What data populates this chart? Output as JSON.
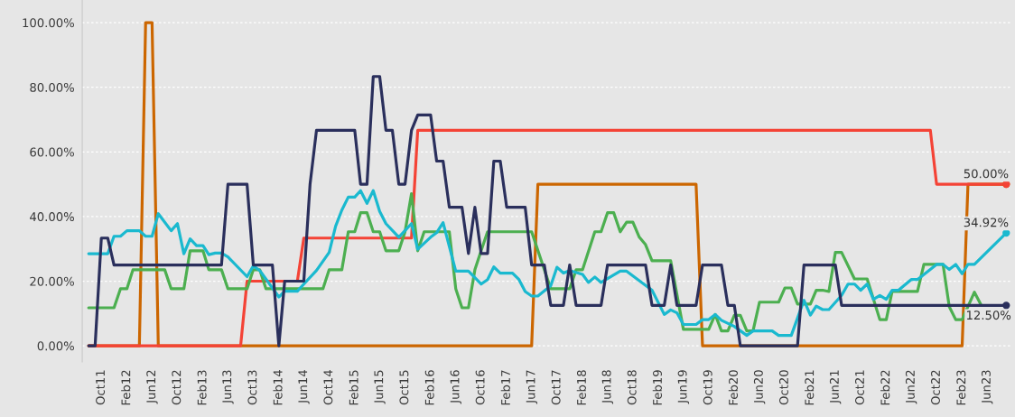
{
  "chart_data": {
    "type": "line",
    "series": [
      {
        "color": "#cc6600",
        "x": [
          "2011-08",
          "2012-04",
          "2012-05",
          "2012-06",
          "2012-07",
          "2017-06",
          "2017-07",
          "2019-08",
          "2019-09",
          "2023-02",
          "2023-03",
          "2023-09"
        ],
        "values": [
          0,
          0,
          100,
          100,
          0,
          0,
          50,
          50,
          0,
          0,
          50,
          50
        ]
      },
      {
        "color": "#f44336",
        "x": [
          "2011-08",
          "2013-08",
          "2013-09",
          "2014-05",
          "2014-06",
          "2015-11",
          "2015-12",
          "2022-09",
          "2022-10",
          "2023-09"
        ],
        "values": [
          0,
          0,
          20,
          20,
          33.33,
          33.33,
          66.67,
          66.67,
          50,
          50
        ]
      },
      {
        "color": "#4caf50",
        "x": [
          "2011-08",
          "2011-12",
          "2012-01",
          "2012-02",
          "2012-03",
          "2012-08",
          "2012-09",
          "2012-11",
          "2012-12",
          "2013-02",
          "2013-03",
          "2013-05",
          "2013-06",
          "2013-09",
          "2013-10",
          "2013-11",
          "2013-12",
          "2014-09",
          "2014-10",
          "2014-12",
          "2015-01",
          "2015-02",
          "2015-03",
          "2015-04",
          "2015-05",
          "2015-06",
          "2015-07",
          "2015-09",
          "2015-10",
          "2015-11",
          "2015-12",
          "2016-01",
          "2016-05",
          "2016-06",
          "2016-07",
          "2016-08",
          "2016-09",
          "2016-10",
          "2016-11",
          "2017-06",
          "2017-08",
          "2017-09",
          "2017-12",
          "2018-01",
          "2018-02",
          "2018-04",
          "2018-05",
          "2018-06",
          "2018-07",
          "2018-08",
          "2018-09",
          "2018-10",
          "2018-11",
          "2018-12",
          "2019-01",
          "2019-04",
          "2019-06",
          "2019-10",
          "2019-11",
          "2019-12",
          "2020-01",
          "2020-02",
          "2020-03",
          "2020-04",
          "2020-05",
          "2020-06",
          "2020-09",
          "2020-10",
          "2020-11",
          "2020-12",
          "2021-02",
          "2021-03",
          "2021-04",
          "2021-05",
          "2021-06",
          "2021-07",
          "2021-09",
          "2021-11",
          "2022-01",
          "2022-02",
          "2022-03",
          "2022-07",
          "2022-08",
          "2022-11",
          "2022-12",
          "2023-01",
          "2023-02",
          "2023-04",
          "2023-05"
        ],
        "values": [
          11.76,
          11.76,
          17.65,
          17.65,
          23.53,
          23.53,
          17.65,
          17.65,
          29.41,
          29.41,
          23.53,
          23.53,
          17.65,
          17.65,
          23.53,
          23.53,
          17.65,
          17.65,
          23.53,
          23.53,
          35.29,
          35.29,
          41.18,
          41.18,
          35.29,
          35.29,
          29.41,
          29.41,
          35.29,
          47.06,
          29.41,
          35.29,
          35.29,
          17.65,
          11.76,
          11.76,
          23.53,
          29.41,
          35.29,
          35.29,
          23.53,
          17.65,
          17.65,
          23.53,
          23.53,
          35.29,
          35.29,
          41.18,
          41.18,
          35.29,
          38.24,
          38.24,
          33.6,
          31.3,
          26.3,
          26.3,
          5.1,
          5.1,
          9.7,
          4.6,
          4.6,
          9.4,
          9.4,
          4.6,
          4.6,
          13.5,
          13.5,
          17.9,
          17.9,
          12.9,
          12.9,
          17.2,
          17.2,
          16.8,
          28.9,
          28.9,
          20.7,
          20.7,
          8.1,
          8.1,
          16.8,
          16.8,
          25.2,
          25.2,
          12.1,
          8.1,
          8.1,
          16.6,
          12.9
        ]
      },
      {
        "color": "#1ab9cf",
        "x": [
          "2011-08",
          "2011-11",
          "2011-12",
          "2012-01",
          "2012-02",
          "2012-04",
          "2012-05",
          "2012-06",
          "2012-07",
          "2012-09",
          "2012-10",
          "2012-11",
          "2012-12",
          "2013-01",
          "2013-02",
          "2013-03",
          "2013-04",
          "2013-05",
          "2013-06",
          "2013-09",
          "2013-10",
          "2013-11",
          "2014-02",
          "2014-03",
          "2014-05",
          "2014-06",
          "2014-08",
          "2014-10",
          "2014-11",
          "2014-12",
          "2015-01",
          "2015-02",
          "2015-03",
          "2015-04",
          "2015-05",
          "2015-06",
          "2015-07",
          "2015-09",
          "2015-11",
          "2015-12",
          "2016-02",
          "2016-03",
          "2016-04",
          "2016-06",
          "2016-08",
          "2016-10",
          "2016-11",
          "2016-12",
          "2017-01",
          "2017-03",
          "2017-04",
          "2017-05",
          "2017-06",
          "2017-07",
          "2017-09",
          "2017-10",
          "2017-11",
          "2017-12",
          "2018-02",
          "2018-03",
          "2018-04",
          "2018-05",
          "2018-08",
          "2018-09",
          "2019-01",
          "2019-03",
          "2019-04",
          "2019-05",
          "2019-06",
          "2019-08",
          "2019-09",
          "2019-10",
          "2019-11",
          "2019-12",
          "2020-02",
          "2020-04",
          "2020-05",
          "2020-08",
          "2020-09",
          "2020-11",
          "2021-01",
          "2021-02",
          "2021-03",
          "2021-04",
          "2021-05",
          "2021-07",
          "2021-08",
          "2021-09",
          "2021-10",
          "2021-11",
          "2021-12",
          "2022-01",
          "2022-02",
          "2022-03",
          "2022-04",
          "2022-06",
          "2022-07",
          "2022-10",
          "2022-11",
          "2022-12",
          "2023-01",
          "2023-02",
          "2023-03",
          "2023-04",
          "2023-09"
        ],
        "values": [
          28.5,
          28.5,
          33.9,
          33.9,
          35.6,
          35.6,
          33.9,
          33.9,
          40.9,
          35.6,
          37.8,
          28.5,
          33.1,
          31,
          31,
          28.2,
          28.7,
          28.7,
          27.5,
          21.4,
          24.7,
          23.3,
          15.1,
          16.9,
          16.9,
          19.1,
          23.3,
          28.9,
          37,
          42,
          46,
          46,
          48,
          44.1,
          48,
          41.6,
          37.8,
          33.6,
          37.8,
          29.9,
          33.6,
          35,
          38.1,
          23.1,
          23.1,
          19.1,
          20.5,
          24.4,
          22.5,
          22.5,
          20.5,
          16.8,
          15.4,
          15.4,
          18.6,
          24.3,
          22.5,
          23.3,
          22.1,
          19.6,
          21.3,
          19.6,
          23.1,
          23.1,
          17.2,
          9.7,
          11.1,
          10.2,
          6.6,
          6.6,
          8.1,
          8.1,
          9.7,
          7.9,
          6,
          3.2,
          4.6,
          4.6,
          3.2,
          3.2,
          14.1,
          9.5,
          12.3,
          11.2,
          11.2,
          15.6,
          19.1,
          19.1,
          17.2,
          19.1,
          14.4,
          15.6,
          14.4,
          17.2,
          17.2,
          20.5,
          20.5,
          25.2,
          25.2,
          23.6,
          25.2,
          22.3,
          25.2,
          25.2,
          34.92
        ]
      },
      {
        "color": "#2a2f5c",
        "x": [
          "2011-08",
          "2011-09",
          "2011-10",
          "2011-11",
          "2011-12",
          "2013-05",
          "2013-06",
          "2013-09",
          "2013-10",
          "2014-01",
          "2014-02",
          "2014-03",
          "2014-06",
          "2014-07",
          "2014-08",
          "2015-02",
          "2015-03",
          "2015-04",
          "2015-05",
          "2015-06",
          "2015-07",
          "2015-08",
          "2015-09",
          "2015-10",
          "2015-11",
          "2015-12",
          "2016-02",
          "2016-03",
          "2016-04",
          "2016-05",
          "2016-07",
          "2016-08",
          "2016-09",
          "2016-10",
          "2016-11",
          "2016-12",
          "2017-01",
          "2017-02",
          "2017-05",
          "2017-06",
          "2017-08",
          "2017-09",
          "2017-11",
          "2017-12",
          "2018-01",
          "2018-05",
          "2018-06",
          "2018-12",
          "2019-01",
          "2019-03",
          "2019-04",
          "2019-05",
          "2019-08",
          "2019-09",
          "2019-12",
          "2020-01",
          "2020-02",
          "2020-03",
          "2020-12",
          "2021-01",
          "2021-06",
          "2021-07",
          "2023-09"
        ],
        "values": [
          0,
          0,
          33.33,
          33.33,
          25,
          25,
          50,
          50,
          25,
          25,
          0,
          20,
          20,
          50,
          66.67,
          66.67,
          50,
          50,
          83.33,
          83.33,
          66.67,
          66.67,
          50,
          50,
          66.67,
          71.43,
          71.43,
          57.14,
          57.14,
          42.86,
          42.86,
          28.57,
          42.86,
          28.57,
          28.57,
          57.14,
          57.14,
          42.86,
          42.86,
          25,
          25,
          12.5,
          12.5,
          25,
          12.5,
          12.5,
          25,
          25,
          12.5,
          12.5,
          25,
          12.5,
          12.5,
          25,
          25,
          12.5,
          12.5,
          0,
          0,
          25,
          25,
          12.5,
          12.5
        ]
      }
    ],
    "xlim": [
      "2011-07",
      "2023-10"
    ],
    "xticks": [
      {
        "value": "2011-10",
        "label": "Oct11"
      },
      {
        "value": "2012-02",
        "label": "Feb12"
      },
      {
        "value": "2012-06",
        "label": "Jun12"
      },
      {
        "value": "2012-10",
        "label": "Oct12"
      },
      {
        "value": "2013-02",
        "label": "Feb13"
      },
      {
        "value": "2013-06",
        "label": "Jun13"
      },
      {
        "value": "2013-10",
        "label": "Oct13"
      },
      {
        "value": "2014-02",
        "label": "Feb14"
      },
      {
        "value": "2014-06",
        "label": "Jun14"
      },
      {
        "value": "2014-10",
        "label": "Oct14"
      },
      {
        "value": "2015-02",
        "label": "Feb15"
      },
      {
        "value": "2015-06",
        "label": "Jun15"
      },
      {
        "value": "2015-10",
        "label": "Oct15"
      },
      {
        "value": "2016-02",
        "label": "Feb16"
      },
      {
        "value": "2016-06",
        "label": "Jun16"
      },
      {
        "value": "2016-10",
        "label": "Oct16"
      },
      {
        "value": "2017-02",
        "label": "Feb17"
      },
      {
        "value": "2017-06",
        "label": "Jun17"
      },
      {
        "value": "2017-10",
        "label": "Oct17"
      },
      {
        "value": "2018-02",
        "label": "Feb18"
      },
      {
        "value": "2018-06",
        "label": "Jun18"
      },
      {
        "value": "2018-10",
        "label": "Oct18"
      },
      {
        "value": "2019-02",
        "label": "Feb19"
      },
      {
        "value": "2019-06",
        "label": "Jun19"
      },
      {
        "value": "2019-10",
        "label": "Oct19"
      },
      {
        "value": "2020-02",
        "label": "Feb20"
      },
      {
        "value": "2020-06",
        "label": "Jun20"
      },
      {
        "value": "2020-10",
        "label": "Oct20"
      },
      {
        "value": "2021-02",
        "label": "Feb21"
      },
      {
        "value": "2021-06",
        "label": "Jun21"
      },
      {
        "value": "2021-10",
        "label": "Oct21"
      },
      {
        "value": "2022-02",
        "label": "Feb22"
      },
      {
        "value": "2022-06",
        "label": "Jun22"
      },
      {
        "value": "2022-10",
        "label": "Oct22"
      },
      {
        "value": "2023-02",
        "label": "Feb23"
      },
      {
        "value": "2023-06",
        "label": "Jun23"
      }
    ],
    "ylim": [
      -5,
      107
    ],
    "yticks": [
      {
        "value": 0,
        "label": "0.00%"
      },
      {
        "value": 20,
        "label": "20.00%"
      },
      {
        "value": 40,
        "label": "40.00%"
      },
      {
        "value": 60,
        "label": "60.00%"
      },
      {
        "value": 80,
        "label": "80.00%"
      },
      {
        "value": 100,
        "label": "100.00%"
      }
    ],
    "grid": "y",
    "legend": false,
    "marker": "none",
    "line_style": "solid",
    "annotations": [
      {
        "text": "50.00%",
        "x": "2023-09",
        "y": 50
      },
      {
        "text": "34.92%",
        "x": "2023-09",
        "y": 34.92
      },
      {
        "text": "12.50%",
        "x": "2023-09",
        "y": 12.5
      }
    ]
  }
}
